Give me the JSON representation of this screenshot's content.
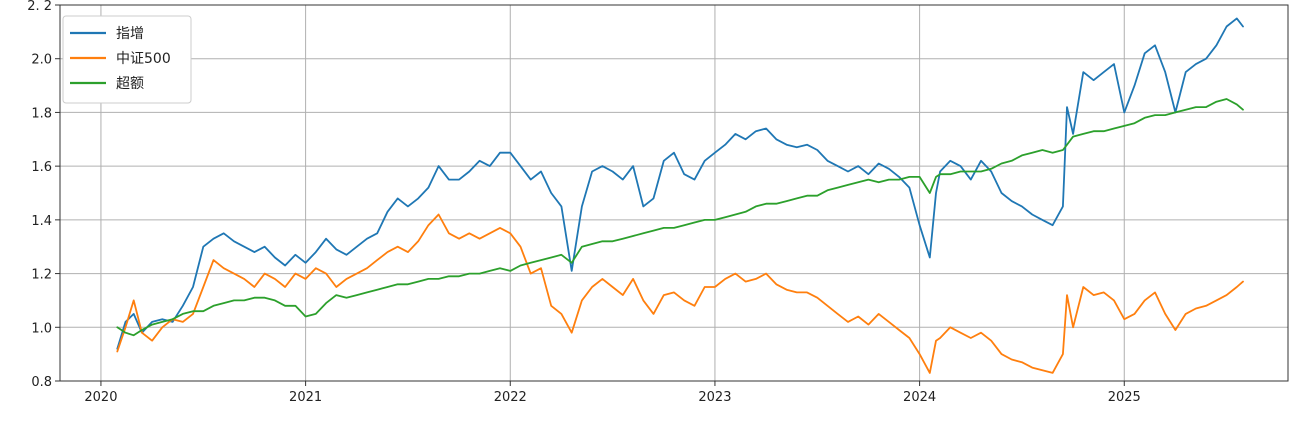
{
  "chart_data": {
    "type": "line",
    "title": "",
    "xlabel": "",
    "ylabel": "",
    "xlim": [
      2019.8,
      2025.8
    ],
    "ylim": [
      0.8,
      2.2
    ],
    "x_ticks": [
      {
        "value": 2020,
        "label": "2020"
      },
      {
        "value": 2021,
        "label": "2021"
      },
      {
        "value": 2022,
        "label": "2022"
      },
      {
        "value": 2023,
        "label": "2023"
      },
      {
        "value": 2024,
        "label": "2024"
      },
      {
        "value": 2025,
        "label": "2025"
      }
    ],
    "y_ticks": [
      {
        "value": 0.8,
        "label": "0.8"
      },
      {
        "value": 1.0,
        "label": "1.0"
      },
      {
        "value": 1.2,
        "label": "1.2"
      },
      {
        "value": 1.4,
        "label": "1.4"
      },
      {
        "value": 1.6,
        "label": "1.6"
      },
      {
        "value": 1.8,
        "label": "1.8"
      },
      {
        "value": 2.0,
        "label": "2.0"
      },
      {
        "value": 2.2,
        "label": "2. 2"
      }
    ],
    "grid": true,
    "legend_position": "top-left",
    "series": [
      {
        "name": "指增",
        "color": "#1f77b4",
        "x": [
          2020.08,
          2020.12,
          2020.16,
          2020.2,
          2020.25,
          2020.3,
          2020.35,
          2020.4,
          2020.45,
          2020.5,
          2020.55,
          2020.6,
          2020.65,
          2020.7,
          2020.75,
          2020.8,
          2020.85,
          2020.9,
          2020.95,
          2021.0,
          2021.05,
          2021.1,
          2021.15,
          2021.2,
          2021.25,
          2021.3,
          2021.35,
          2021.4,
          2021.45,
          2021.5,
          2021.55,
          2021.6,
          2021.65,
          2021.7,
          2021.75,
          2021.8,
          2021.85,
          2021.9,
          2021.95,
          2022.0,
          2022.05,
          2022.1,
          2022.15,
          2022.2,
          2022.25,
          2022.3,
          2022.35,
          2022.4,
          2022.45,
          2022.5,
          2022.55,
          2022.6,
          2022.65,
          2022.7,
          2022.75,
          2022.8,
          2022.85,
          2022.9,
          2022.95,
          2023.0,
          2023.05,
          2023.1,
          2023.15,
          2023.2,
          2023.25,
          2023.3,
          2023.35,
          2023.4,
          2023.45,
          2023.5,
          2023.55,
          2023.6,
          2023.65,
          2023.7,
          2023.75,
          2023.8,
          2023.85,
          2023.9,
          2023.95,
          2024.0,
          2024.05,
          2024.08,
          2024.1,
          2024.15,
          2024.2,
          2024.25,
          2024.3,
          2024.35,
          2024.4,
          2024.45,
          2024.5,
          2024.55,
          2024.6,
          2024.65,
          2024.7,
          2024.72,
          2024.75,
          2024.8,
          2024.85,
          2024.9,
          2024.95,
          2025.0,
          2025.05,
          2025.1,
          2025.15,
          2025.2,
          2025.25,
          2025.3,
          2025.35,
          2025.4,
          2025.45,
          2025.5,
          2025.55,
          2025.58
        ],
        "values": [
          0.92,
          1.02,
          1.05,
          0.98,
          1.02,
          1.03,
          1.02,
          1.08,
          1.15,
          1.3,
          1.33,
          1.35,
          1.32,
          1.3,
          1.28,
          1.3,
          1.26,
          1.23,
          1.27,
          1.24,
          1.28,
          1.33,
          1.29,
          1.27,
          1.3,
          1.33,
          1.35,
          1.43,
          1.48,
          1.45,
          1.48,
          1.52,
          1.6,
          1.55,
          1.55,
          1.58,
          1.62,
          1.6,
          1.65,
          1.65,
          1.6,
          1.55,
          1.58,
          1.5,
          1.45,
          1.21,
          1.45,
          1.58,
          1.6,
          1.58,
          1.55,
          1.6,
          1.45,
          1.48,
          1.62,
          1.65,
          1.57,
          1.55,
          1.62,
          1.65,
          1.68,
          1.72,
          1.7,
          1.73,
          1.74,
          1.7,
          1.68,
          1.67,
          1.68,
          1.66,
          1.62,
          1.6,
          1.58,
          1.6,
          1.57,
          1.61,
          1.59,
          1.56,
          1.52,
          1.38,
          1.26,
          1.5,
          1.58,
          1.62,
          1.6,
          1.55,
          1.62,
          1.58,
          1.5,
          1.47,
          1.45,
          1.42,
          1.4,
          1.38,
          1.45,
          1.82,
          1.72,
          1.95,
          1.92,
          1.95,
          1.98,
          1.8,
          1.9,
          2.02,
          2.05,
          1.95,
          1.8,
          1.95,
          1.98,
          2.0,
          2.05,
          2.12,
          2.15,
          2.12
        ]
      },
      {
        "name": "中证500",
        "color": "#ff7f0e",
        "x": [
          2020.08,
          2020.12,
          2020.16,
          2020.2,
          2020.25,
          2020.3,
          2020.35,
          2020.4,
          2020.45,
          2020.5,
          2020.55,
          2020.6,
          2020.65,
          2020.7,
          2020.75,
          2020.8,
          2020.85,
          2020.9,
          2020.95,
          2021.0,
          2021.05,
          2021.1,
          2021.15,
          2021.2,
          2021.25,
          2021.3,
          2021.35,
          2021.4,
          2021.45,
          2021.5,
          2021.55,
          2021.6,
          2021.65,
          2021.7,
          2021.75,
          2021.8,
          2021.85,
          2021.9,
          2021.95,
          2022.0,
          2022.05,
          2022.1,
          2022.15,
          2022.2,
          2022.25,
          2022.3,
          2022.35,
          2022.4,
          2022.45,
          2022.5,
          2022.55,
          2022.6,
          2022.65,
          2022.7,
          2022.75,
          2022.8,
          2022.85,
          2022.9,
          2022.95,
          2023.0,
          2023.05,
          2023.1,
          2023.15,
          2023.2,
          2023.25,
          2023.3,
          2023.35,
          2023.4,
          2023.45,
          2023.5,
          2023.55,
          2023.6,
          2023.65,
          2023.7,
          2023.75,
          2023.8,
          2023.85,
          2023.9,
          2023.95,
          2024.0,
          2024.05,
          2024.08,
          2024.1,
          2024.15,
          2024.2,
          2024.25,
          2024.3,
          2024.35,
          2024.4,
          2024.45,
          2024.5,
          2024.55,
          2024.6,
          2024.65,
          2024.7,
          2024.72,
          2024.75,
          2024.8,
          2024.85,
          2024.9,
          2024.95,
          2025.0,
          2025.05,
          2025.1,
          2025.15,
          2025.2,
          2025.25,
          2025.3,
          2025.35,
          2025.4,
          2025.45,
          2025.5,
          2025.55,
          2025.58
        ],
        "values": [
          0.91,
          1.0,
          1.1,
          0.98,
          0.95,
          1.0,
          1.03,
          1.02,
          1.05,
          1.15,
          1.25,
          1.22,
          1.2,
          1.18,
          1.15,
          1.2,
          1.18,
          1.15,
          1.2,
          1.18,
          1.22,
          1.2,
          1.15,
          1.18,
          1.2,
          1.22,
          1.25,
          1.28,
          1.3,
          1.28,
          1.32,
          1.38,
          1.42,
          1.35,
          1.33,
          1.35,
          1.33,
          1.35,
          1.37,
          1.35,
          1.3,
          1.2,
          1.22,
          1.08,
          1.05,
          0.98,
          1.1,
          1.15,
          1.18,
          1.15,
          1.12,
          1.18,
          1.1,
          1.05,
          1.12,
          1.13,
          1.1,
          1.08,
          1.15,
          1.15,
          1.18,
          1.2,
          1.17,
          1.18,
          1.2,
          1.16,
          1.14,
          1.13,
          1.13,
          1.11,
          1.08,
          1.05,
          1.02,
          1.04,
          1.01,
          1.05,
          1.02,
          0.99,
          0.96,
          0.9,
          0.83,
          0.95,
          0.96,
          1.0,
          0.98,
          0.96,
          0.98,
          0.95,
          0.9,
          0.88,
          0.87,
          0.85,
          0.84,
          0.83,
          0.9,
          1.12,
          1.0,
          1.15,
          1.12,
          1.13,
          1.1,
          1.03,
          1.05,
          1.1,
          1.13,
          1.05,
          0.99,
          1.05,
          1.07,
          1.08,
          1.1,
          1.12,
          1.15,
          1.17
        ]
      },
      {
        "name": "超额",
        "color": "#2ca02c",
        "x": [
          2020.08,
          2020.12,
          2020.16,
          2020.2,
          2020.25,
          2020.3,
          2020.35,
          2020.4,
          2020.45,
          2020.5,
          2020.55,
          2020.6,
          2020.65,
          2020.7,
          2020.75,
          2020.8,
          2020.85,
          2020.9,
          2020.95,
          2021.0,
          2021.05,
          2021.1,
          2021.15,
          2021.2,
          2021.25,
          2021.3,
          2021.35,
          2021.4,
          2021.45,
          2021.5,
          2021.55,
          2021.6,
          2021.65,
          2021.7,
          2021.75,
          2021.8,
          2021.85,
          2021.9,
          2021.95,
          2022.0,
          2022.05,
          2022.1,
          2022.15,
          2022.2,
          2022.25,
          2022.3,
          2022.35,
          2022.4,
          2022.45,
          2022.5,
          2022.55,
          2022.6,
          2022.65,
          2022.7,
          2022.75,
          2022.8,
          2022.85,
          2022.9,
          2022.95,
          2023.0,
          2023.05,
          2023.1,
          2023.15,
          2023.2,
          2023.25,
          2023.3,
          2023.35,
          2023.4,
          2023.45,
          2023.5,
          2023.55,
          2023.6,
          2023.65,
          2023.7,
          2023.75,
          2023.8,
          2023.85,
          2023.9,
          2023.95,
          2024.0,
          2024.05,
          2024.08,
          2024.1,
          2024.15,
          2024.2,
          2024.25,
          2024.3,
          2024.35,
          2024.4,
          2024.45,
          2024.5,
          2024.55,
          2024.6,
          2024.65,
          2024.7,
          2024.72,
          2024.75,
          2024.8,
          2024.85,
          2024.9,
          2024.95,
          2025.0,
          2025.05,
          2025.1,
          2025.15,
          2025.2,
          2025.25,
          2025.3,
          2025.35,
          2025.4,
          2025.45,
          2025.5,
          2025.55,
          2025.58
        ],
        "values": [
          1.0,
          0.98,
          0.97,
          0.99,
          1.01,
          1.02,
          1.03,
          1.05,
          1.06,
          1.06,
          1.08,
          1.09,
          1.1,
          1.1,
          1.11,
          1.11,
          1.1,
          1.08,
          1.08,
          1.04,
          1.05,
          1.09,
          1.12,
          1.11,
          1.12,
          1.13,
          1.14,
          1.15,
          1.16,
          1.16,
          1.17,
          1.18,
          1.18,
          1.19,
          1.19,
          1.2,
          1.2,
          1.21,
          1.22,
          1.21,
          1.23,
          1.24,
          1.25,
          1.26,
          1.27,
          1.24,
          1.3,
          1.31,
          1.32,
          1.32,
          1.33,
          1.34,
          1.35,
          1.36,
          1.37,
          1.37,
          1.38,
          1.39,
          1.4,
          1.4,
          1.41,
          1.42,
          1.43,
          1.45,
          1.46,
          1.46,
          1.47,
          1.48,
          1.49,
          1.49,
          1.51,
          1.52,
          1.53,
          1.54,
          1.55,
          1.54,
          1.55,
          1.55,
          1.56,
          1.56,
          1.5,
          1.56,
          1.57,
          1.57,
          1.58,
          1.58,
          1.58,
          1.59,
          1.61,
          1.62,
          1.64,
          1.65,
          1.66,
          1.65,
          1.66,
          1.68,
          1.71,
          1.72,
          1.73,
          1.73,
          1.74,
          1.75,
          1.76,
          1.78,
          1.79,
          1.79,
          1.8,
          1.81,
          1.82,
          1.82,
          1.84,
          1.85,
          1.83,
          1.81
        ]
      }
    ]
  }
}
